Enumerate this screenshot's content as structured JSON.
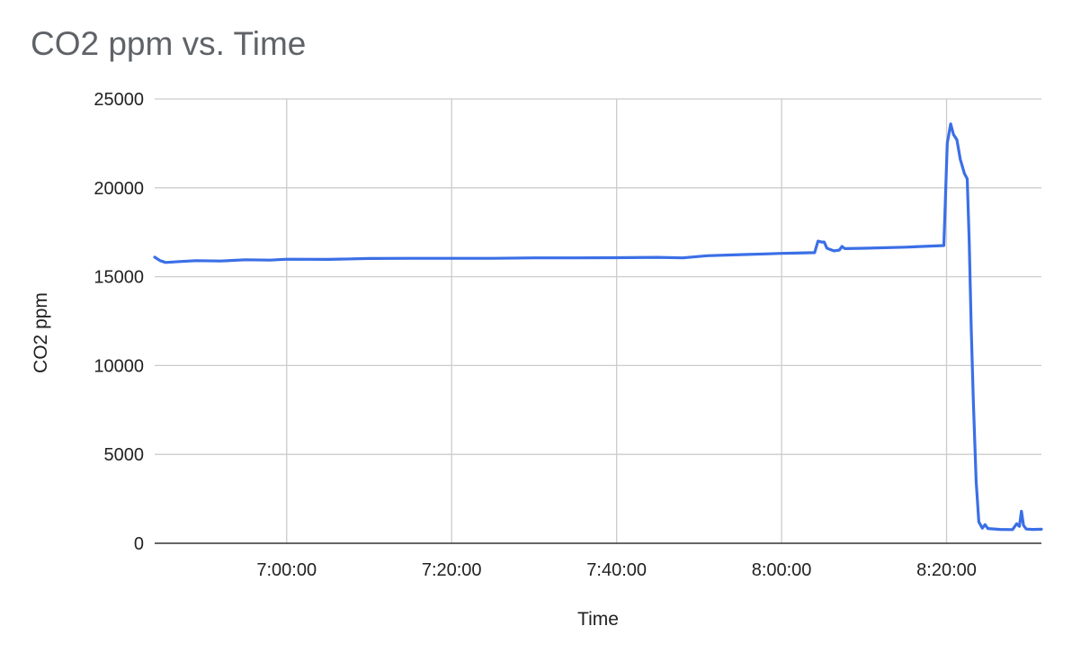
{
  "chart_data": {
    "type": "line",
    "title": "CO2 ppm vs. Time",
    "xlabel": "Time",
    "ylabel": "CO2 ppm",
    "xlim": [
      "6:44:00",
      "8:31:30"
    ],
    "ylim": [
      0,
      25000
    ],
    "x_ticks": [
      "7:00:00",
      "7:20:00",
      "7:40:00",
      "8:00:00",
      "8:20:00"
    ],
    "y_ticks": [
      0,
      5000,
      10000,
      15000,
      20000,
      25000
    ],
    "grid": true,
    "legend": "none",
    "series": [
      {
        "color": "#3b6fe6",
        "points": [
          [
            "6:44:00",
            16100
          ],
          [
            "6:44:40",
            15900
          ],
          [
            "6:45:20",
            15800
          ],
          [
            "6:47:00",
            15850
          ],
          [
            "6:49:00",
            15900
          ],
          [
            "6:52:00",
            15880
          ],
          [
            "6:55:00",
            15950
          ],
          [
            "6:58:00",
            15930
          ],
          [
            "7:00:00",
            15980
          ],
          [
            "7:05:00",
            15970
          ],
          [
            "7:10:00",
            16020
          ],
          [
            "7:15:00",
            16030
          ],
          [
            "7:20:00",
            16030
          ],
          [
            "7:25:00",
            16030
          ],
          [
            "7:30:00",
            16060
          ],
          [
            "7:35:00",
            16060
          ],
          [
            "7:40:00",
            16070
          ],
          [
            "7:45:00",
            16090
          ],
          [
            "7:48:00",
            16060
          ],
          [
            "7:51:00",
            16180
          ],
          [
            "7:55:00",
            16240
          ],
          [
            "7:58:00",
            16280
          ],
          [
            "8:00:00",
            16310
          ],
          [
            "8:04:00",
            16350
          ],
          [
            "8:04:25",
            17000
          ],
          [
            "8:04:50",
            16950
          ],
          [
            "8:05:10",
            16950
          ],
          [
            "8:05:30",
            16600
          ],
          [
            "8:06:20",
            16450
          ],
          [
            "8:07:00",
            16500
          ],
          [
            "8:07:20",
            16700
          ],
          [
            "8:07:40",
            16580
          ],
          [
            "8:10:00",
            16600
          ],
          [
            "8:15:00",
            16660
          ],
          [
            "8:19:40",
            16750
          ],
          [
            "8:20:05",
            22500
          ],
          [
            "8:20:30",
            23600
          ],
          [
            "8:20:50",
            23000
          ],
          [
            "8:21:15",
            22700
          ],
          [
            "8:21:40",
            21600
          ],
          [
            "8:22:10",
            20800
          ],
          [
            "8:22:30",
            20500
          ],
          [
            "8:22:45",
            17000
          ],
          [
            "8:23:00",
            12000
          ],
          [
            "8:23:15",
            8000
          ],
          [
            "8:23:35",
            3500
          ],
          [
            "8:23:55",
            1200
          ],
          [
            "8:24:20",
            850
          ],
          [
            "8:24:40",
            1050
          ],
          [
            "8:25:00",
            830
          ],
          [
            "8:26:30",
            780
          ],
          [
            "8:28:00",
            770
          ],
          [
            "8:28:30",
            1100
          ],
          [
            "8:28:50",
            950
          ],
          [
            "8:29:05",
            1800
          ],
          [
            "8:29:20",
            1000
          ],
          [
            "8:29:40",
            800
          ],
          [
            "8:30:30",
            780
          ],
          [
            "8:31:30",
            790
          ]
        ]
      }
    ]
  }
}
